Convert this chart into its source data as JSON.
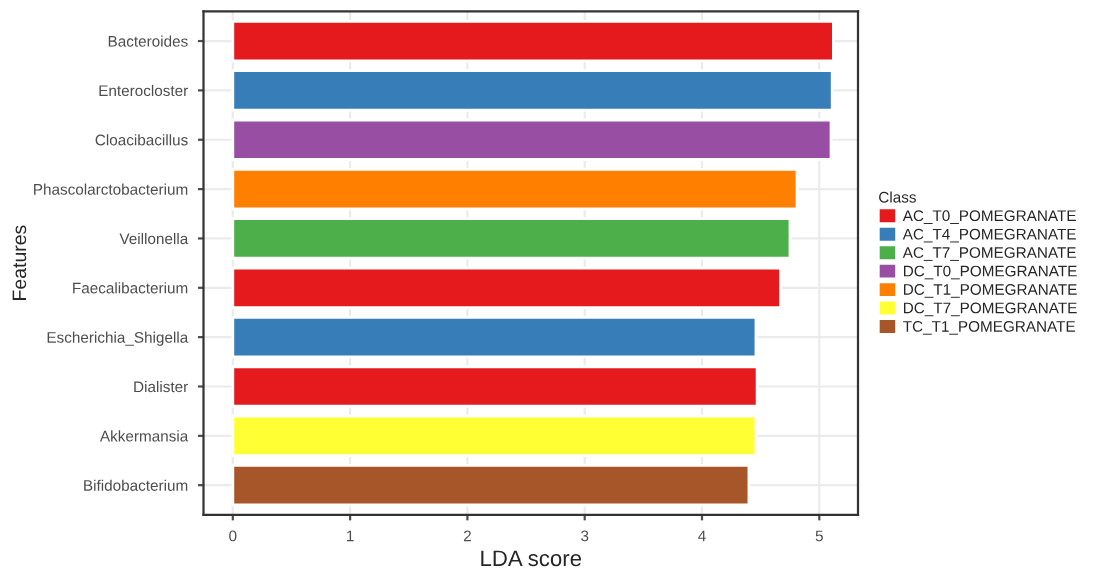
{
  "chart_data": {
    "type": "bar",
    "orientation": "horizontal",
    "xlabel": "LDA score",
    "ylabel": "Features",
    "legend_title": "Class",
    "legend": "right",
    "grid": true,
    "categories": [
      "Bacteroides",
      "Enterocloster",
      "Cloacibacillus",
      "Phascolarctobacterium",
      "Veillonella",
      "Faecalibacterium",
      "Escherichia_Shigella",
      "Dialister",
      "Akkermansia",
      "Bifidobacterium"
    ],
    "series": [
      {
        "name": "AC_T0_POMEGRANATE",
        "color": "#e41a1c",
        "values": [
          5.12,
          null,
          null,
          null,
          null,
          4.67,
          null,
          4.47,
          null,
          null
        ]
      },
      {
        "name": "AC_T4_POMEGRANATE",
        "color": "#377eb8",
        "values": [
          null,
          5.11,
          null,
          null,
          null,
          null,
          4.46,
          null,
          null,
          null
        ]
      },
      {
        "name": "AC_T7_POMEGRANATE",
        "color": "#4daf4a",
        "values": [
          null,
          null,
          null,
          null,
          4.75,
          null,
          null,
          null,
          null,
          null
        ]
      },
      {
        "name": "DC_T0_POMEGRANATE",
        "color": "#984ea3",
        "values": [
          null,
          null,
          5.1,
          null,
          null,
          null,
          null,
          null,
          null,
          null
        ]
      },
      {
        "name": "DC_T1_POMEGRANATE",
        "color": "#ff7f00",
        "values": [
          null,
          null,
          null,
          4.81,
          null,
          null,
          null,
          null,
          null,
          null
        ]
      },
      {
        "name": "DC_T7_POMEGRANATE",
        "color": "#ffff33",
        "values": [
          null,
          null,
          null,
          null,
          null,
          null,
          null,
          null,
          4.46,
          null
        ]
      },
      {
        "name": "TC_T1_POMEGRANATE",
        "color": "#a65628",
        "values": [
          null,
          null,
          null,
          null,
          null,
          null,
          null,
          null,
          null,
          4.4
        ]
      }
    ],
    "xlim": [
      -0.25,
      5.33
    ],
    "xticks": [
      0,
      1,
      2,
      3,
      4,
      5
    ]
  }
}
